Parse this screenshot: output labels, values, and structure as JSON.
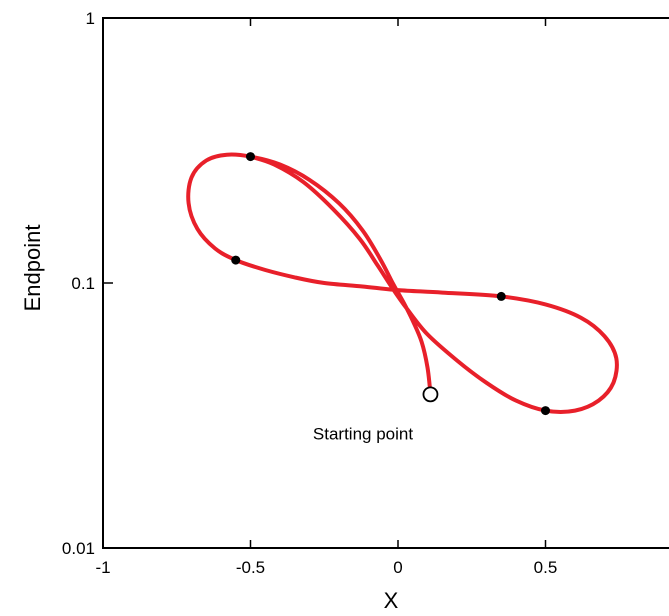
{
  "chart_data": {
    "type": "line",
    "title": "",
    "xlabel": "X",
    "ylabel": "Endpoint",
    "xlim": [
      -1,
      1
    ],
    "ylim": [
      0.01,
      1
    ],
    "yscale": "log",
    "grid": false,
    "x_ticks": [
      {
        "value": -1,
        "label": "-1"
      },
      {
        "value": -0.5,
        "label": "-0.5"
      },
      {
        "value": 0,
        "label": "0"
      },
      {
        "value": 0.5,
        "label": "0.5"
      }
    ],
    "y_ticks": [
      {
        "value": 0.01,
        "label": "0.01"
      },
      {
        "value": 0.1,
        "label": "0.1"
      },
      {
        "value": 1,
        "label": "1"
      }
    ],
    "series": [
      {
        "color": "#e8202a",
        "points": [
          [
            0.11,
            0.038
          ],
          [
            0.1,
            0.048
          ],
          [
            0.08,
            0.06
          ],
          [
            0.05,
            0.072
          ],
          [
            0.02,
            0.084
          ],
          [
            0.0,
            0.092
          ],
          [
            -0.02,
            0.101
          ],
          [
            -0.06,
            0.123
          ],
          [
            -0.12,
            0.158
          ],
          [
            -0.2,
            0.2
          ],
          [
            -0.3,
            0.245
          ],
          [
            -0.4,
            0.28
          ],
          [
            -0.5,
            0.3
          ],
          [
            -0.58,
            0.305
          ],
          [
            -0.65,
            0.29
          ],
          [
            -0.7,
            0.25
          ],
          [
            -0.71,
            0.2
          ],
          [
            -0.68,
            0.16
          ],
          [
            -0.62,
            0.135
          ],
          [
            -0.55,
            0.122
          ],
          [
            -0.45,
            0.112
          ],
          [
            -0.35,
            0.105
          ],
          [
            -0.25,
            0.1
          ],
          [
            -0.12,
            0.097
          ],
          [
            0.0,
            0.094
          ],
          [
            0.15,
            0.092
          ],
          [
            0.35,
            0.089
          ],
          [
            0.5,
            0.083
          ],
          [
            0.62,
            0.074
          ],
          [
            0.7,
            0.063
          ],
          [
            0.74,
            0.052
          ],
          [
            0.73,
            0.042
          ],
          [
            0.68,
            0.036
          ],
          [
            0.6,
            0.033
          ],
          [
            0.5,
            0.033
          ],
          [
            0.4,
            0.036
          ],
          [
            0.3,
            0.042
          ],
          [
            0.2,
            0.051
          ],
          [
            0.1,
            0.064
          ],
          [
            0.03,
            0.08
          ],
          [
            -0.02,
            0.096
          ],
          [
            -0.07,
            0.117
          ],
          [
            -0.13,
            0.147
          ],
          [
            -0.22,
            0.19
          ],
          [
            -0.32,
            0.24
          ],
          [
            -0.42,
            0.28
          ],
          [
            -0.5,
            0.3
          ]
        ]
      }
    ],
    "markers": [
      {
        "x": -0.5,
        "y": 0.3
      },
      {
        "x": -0.55,
        "y": 0.122
      },
      {
        "x": 0.35,
        "y": 0.089
      },
      {
        "x": 0.5,
        "y": 0.033
      }
    ],
    "start_point": {
      "x": 0.11,
      "y": 0.038,
      "label": "Starting point"
    }
  }
}
